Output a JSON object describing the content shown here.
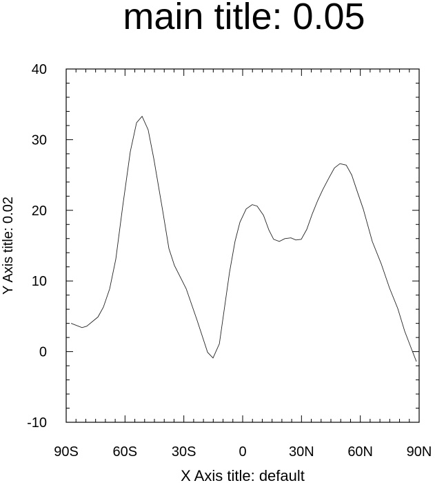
{
  "chart_data": {
    "type": "line",
    "title": "main title: 0.05",
    "xlabel": "X Axis title: default",
    "ylabel": "Y Axis title: 0.02",
    "xlim": [
      -90,
      90
    ],
    "ylim": [
      -10,
      40
    ],
    "x_ticks": [
      -90,
      -60,
      -30,
      0,
      30,
      60,
      90
    ],
    "x_tick_labels": [
      "90S",
      "60S",
      "30S",
      "0",
      "30N",
      "60N",
      "90N"
    ],
    "y_ticks": [
      -10,
      0,
      10,
      20,
      30,
      40
    ],
    "y_tick_labels": [
      "-10",
      "0",
      "10",
      "20",
      "30",
      "40"
    ],
    "grid": false,
    "line_color": "#000000",
    "series": [
      {
        "x": [
          -87.5,
          -81.9,
          -79.5,
          -73.8,
          -71,
          -67.8,
          -64.7,
          -61.2,
          -57.3,
          -54.1,
          -51.3,
          -48.2,
          -45.3,
          -40.8,
          -37.6,
          -34.8,
          -28.8,
          -23.2,
          -17.9,
          -15.1,
          -11.9,
          -6.7,
          -3.9,
          -1.4,
          1.8,
          4.9,
          7.4,
          10.6,
          13.4,
          15.8,
          18.7,
          21.5,
          24.6,
          27.1,
          29.9,
          32.7,
          35.5,
          38.3,
          40.8,
          44,
          46.8,
          49.6,
          52.8,
          55.6,
          58.4,
          61.5,
          66.1,
          70.7,
          74.9,
          79.1,
          82.6,
          86.2,
          88.6
        ],
        "y": [
          4.0,
          3.4,
          3.6,
          4.9,
          6.3,
          8.9,
          13.1,
          20.5,
          28.3,
          32.4,
          33.3,
          31.4,
          27.3,
          20.0,
          14.6,
          12.2,
          8.9,
          4.4,
          -0.1,
          -0.9,
          1.1,
          11.2,
          15.6,
          18.3,
          20.2,
          20.8,
          20.6,
          19.3,
          17.2,
          15.9,
          15.6,
          16.0,
          16.1,
          15.8,
          15.9,
          17.3,
          19.5,
          21.4,
          22.9,
          24.6,
          26.0,
          26.6,
          26.4,
          25.0,
          22.7,
          20.2,
          15.6,
          12.4,
          9.0,
          6.1,
          2.9,
          0.3,
          -1.4
        ]
      }
    ]
  }
}
